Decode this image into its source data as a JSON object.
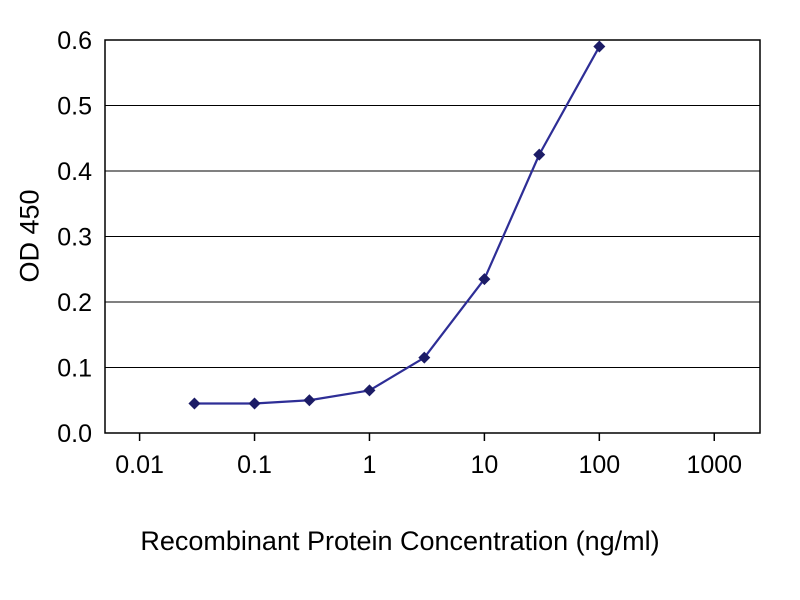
{
  "chart_data": {
    "type": "line",
    "title": "",
    "xlabel": "Recombinant Protein Concentration (ng/ml)",
    "ylabel": "OD 450",
    "x_scale": "log",
    "x": [
      0.03,
      0.1,
      0.3,
      1,
      3,
      10,
      30,
      100
    ],
    "y": [
      0.045,
      0.045,
      0.05,
      0.065,
      0.115,
      0.235,
      0.425,
      0.59
    ],
    "xlim": [
      0.005,
      2500
    ],
    "ylim": [
      0.0,
      0.6
    ],
    "x_ticks": [
      0.01,
      0.1,
      1,
      10,
      100,
      1000
    ],
    "x_tick_labels": [
      "0.01",
      "0.1",
      "1",
      "10",
      "100",
      "1000"
    ],
    "y_ticks": [
      0.0,
      0.1,
      0.2,
      0.3,
      0.4,
      0.5,
      0.6
    ],
    "y_tick_labels": [
      "0.0",
      "0.1",
      "0.2",
      "0.3",
      "0.4",
      "0.5",
      "0.6"
    ],
    "grid": "horizontal",
    "legend": "none",
    "marker": "diamond",
    "line_color": "#2e2e96",
    "marker_color": "#1c1c66",
    "axis_color": "#000000",
    "text_color": "#000000",
    "background_color": "#ffffff"
  }
}
